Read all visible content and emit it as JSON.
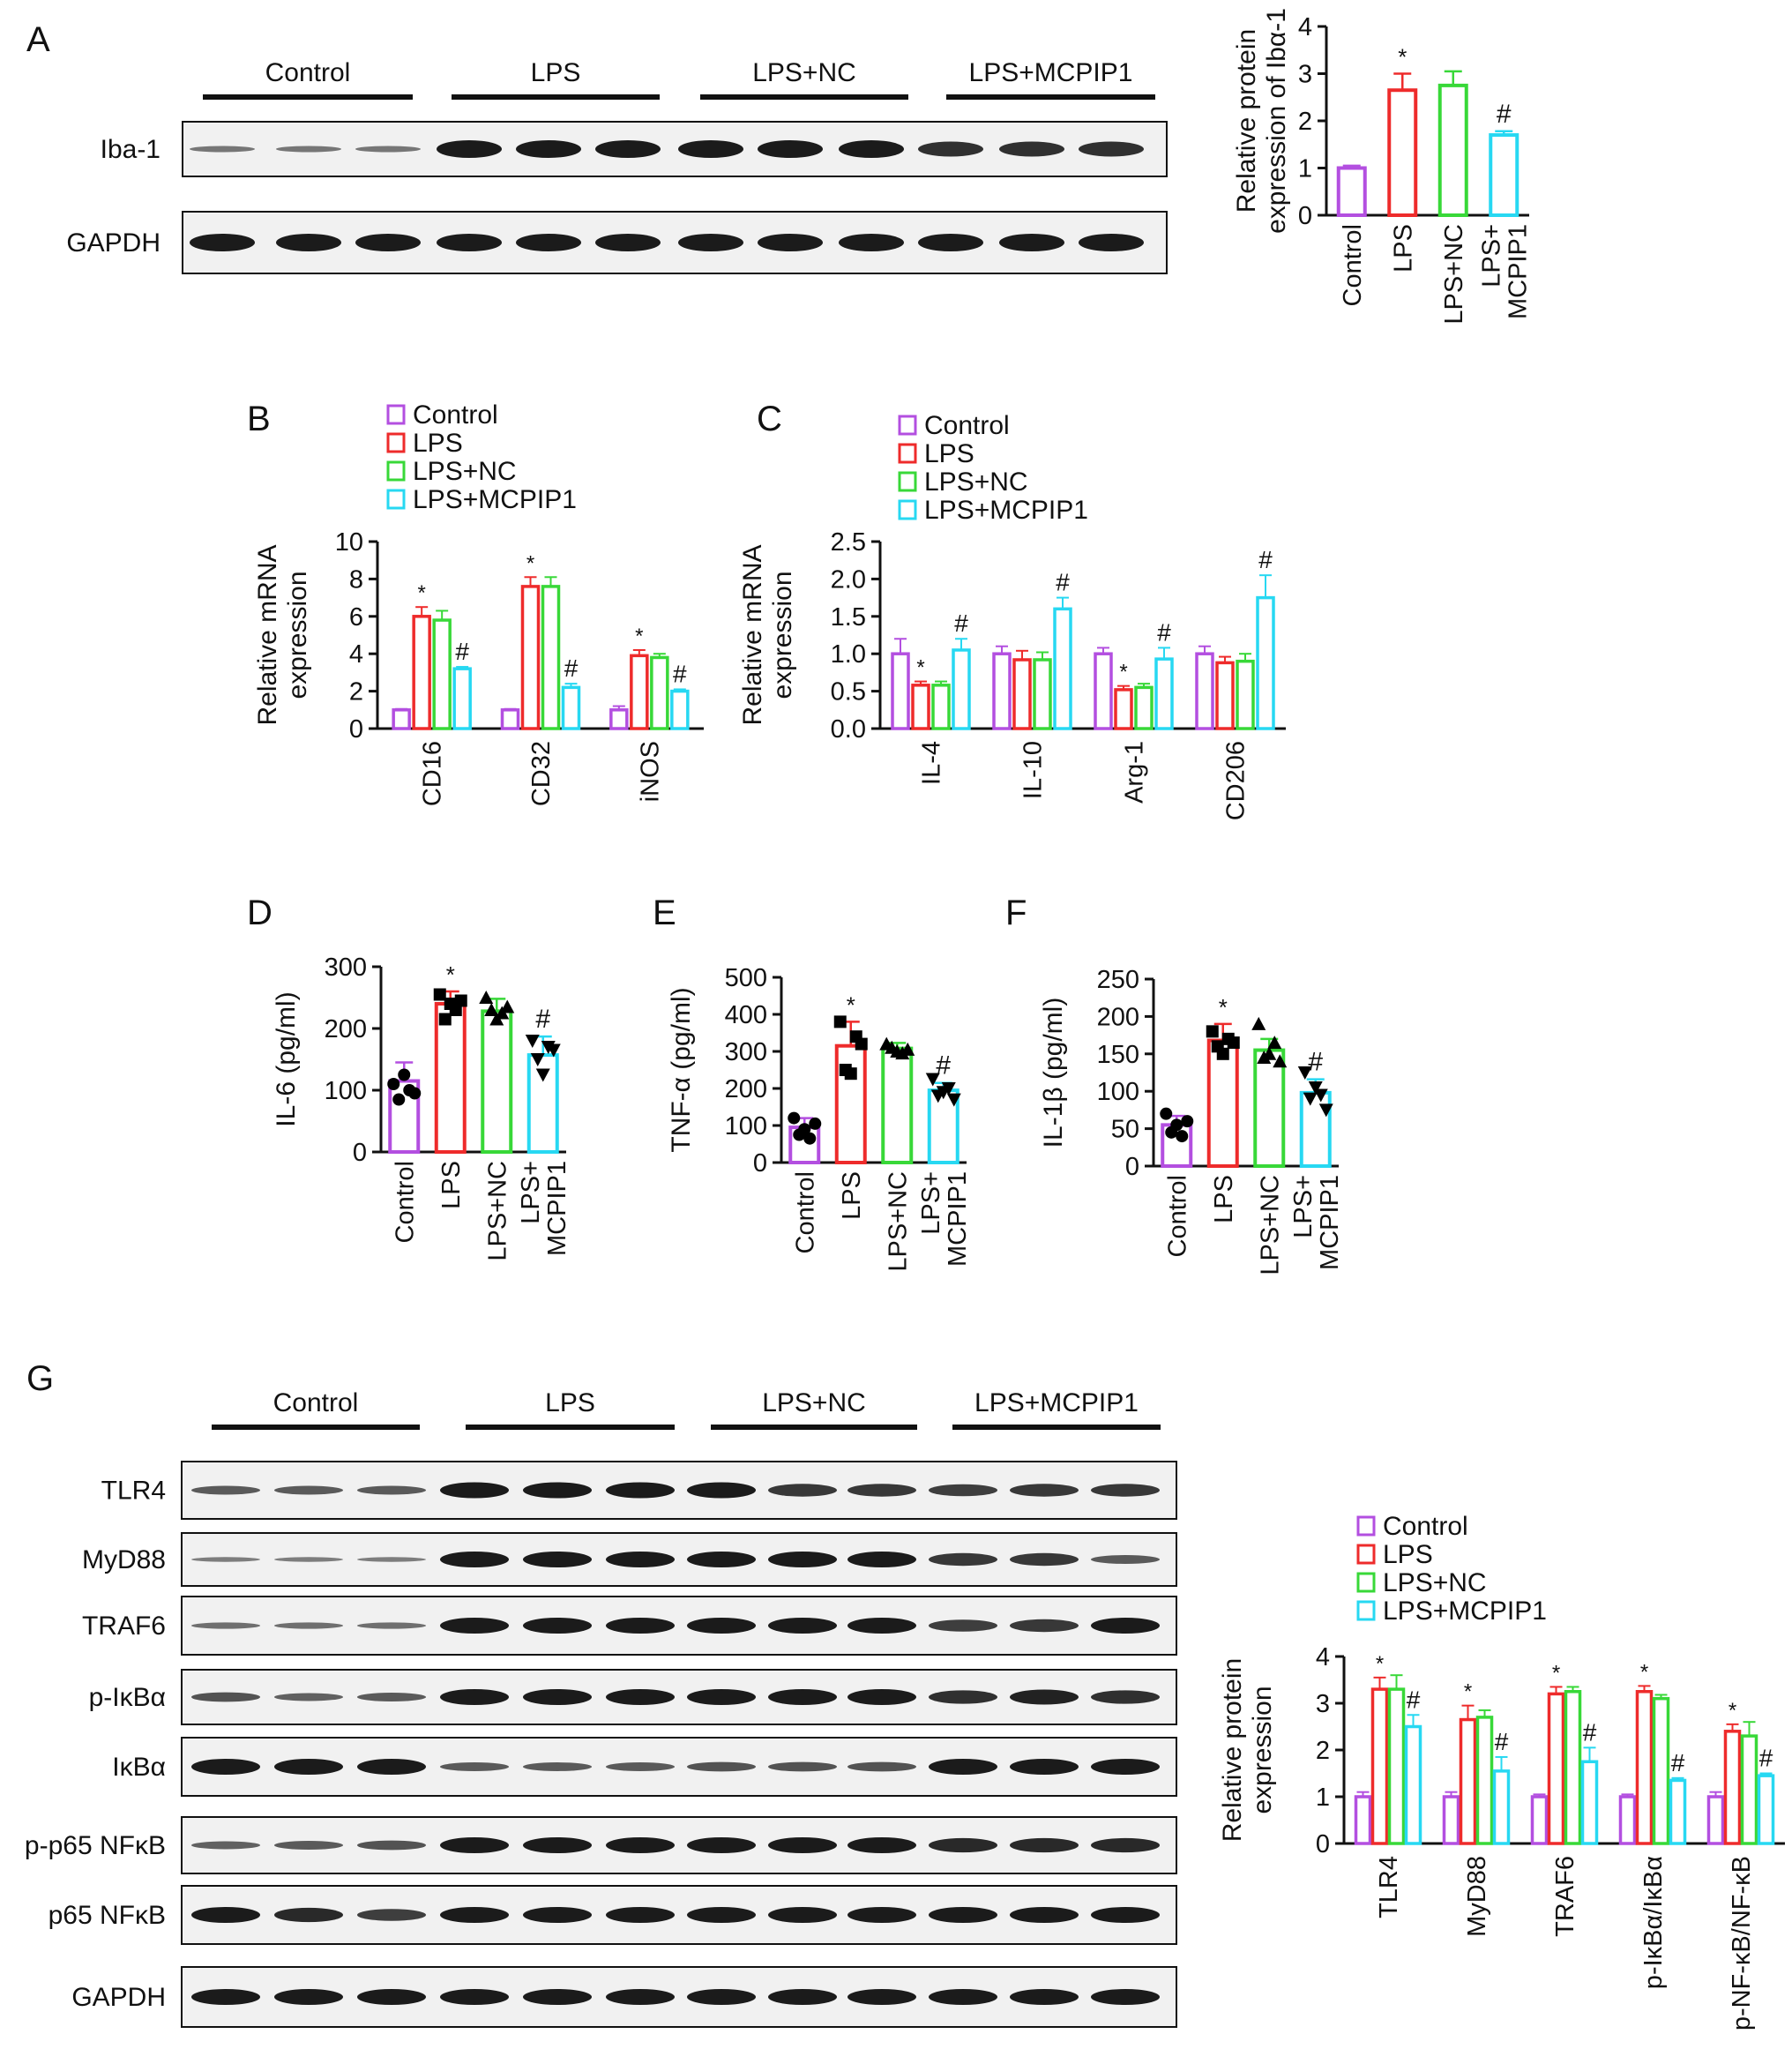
{
  "colors": {
    "Control": "#b34fe0",
    "LPS": "#ee2b2b",
    "LPS+NC": "#38d838",
    "LPS+MCPIP1": "#27d8f2",
    "band": "#1b1b1b"
  },
  "groups": [
    "Control",
    "LPS",
    "LPS+NC",
    "LPS+MCPIP1"
  ],
  "panel_letters": {
    "A": "A",
    "B": "B",
    "C": "C",
    "D": "D",
    "E": "E",
    "F": "F",
    "G": "G"
  },
  "blotA": {
    "rows": [
      "Iba-1",
      "GAPDH"
    ],
    "headers": [
      "Control",
      "LPS",
      "LPS+NC",
      "LPS+MCPIP1"
    ]
  },
  "blotG": {
    "rows": [
      "TLR4",
      "MyD88",
      "TRAF6",
      "p-IκBα",
      "IκBα",
      "p-p65 NFκB",
      "p65 NFκB",
      "GAPDH"
    ],
    "headers": [
      "Control",
      "LPS",
      "LPS+NC",
      "LPS+MCPIP1"
    ]
  },
  "chart_data": [
    {
      "id": "A",
      "type": "bar",
      "categories": [
        "Control",
        "LPS",
        "LPS+NC",
        "LPS+\nMCPIP1"
      ],
      "values": [
        1.0,
        2.65,
        2.75,
        1.7
      ],
      "errors": [
        0.05,
        0.35,
        0.3,
        0.08
      ],
      "marks": [
        "",
        "*",
        "",
        "#"
      ],
      "ylabel": [
        "Relative protein",
        "expression of Ibα-1"
      ],
      "ylim": [
        0,
        4
      ],
      "ticks": [
        0,
        1,
        2,
        3,
        4
      ]
    },
    {
      "id": "B",
      "type": "bar",
      "categories": [
        "CD16",
        "CD32",
        "iNOS"
      ],
      "series": [
        {
          "name": "Control",
          "values": [
            1.0,
            1.0,
            1.0
          ],
          "errors": [
            0.05,
            0.05,
            0.2
          ]
        },
        {
          "name": "LPS",
          "values": [
            6.0,
            7.6,
            3.9
          ],
          "errors": [
            0.5,
            0.5,
            0.3
          ]
        },
        {
          "name": "LPS+NC",
          "values": [
            5.8,
            7.6,
            3.8
          ],
          "errors": [
            0.5,
            0.5,
            0.2
          ]
        },
        {
          "name": "LPS+MCPIP1",
          "values": [
            3.2,
            2.2,
            2.0
          ],
          "errors": [
            0.1,
            0.2,
            0.1
          ]
        }
      ],
      "marks": [
        [
          "",
          "*",
          "",
          "#"
        ],
        [
          "",
          "*",
          "",
          "#"
        ],
        [
          "",
          "*",
          "",
          "#"
        ]
      ],
      "ylabel": [
        "Relative mRNA",
        "expression"
      ],
      "ylim": [
        0,
        10
      ],
      "ticks": [
        0,
        2,
        4,
        6,
        8,
        10
      ],
      "legend": "top"
    },
    {
      "id": "C",
      "type": "bar",
      "categories": [
        "IL-4",
        "IL-10",
        "Arg-1",
        "CD206"
      ],
      "series": [
        {
          "name": "Control",
          "values": [
            1.0,
            1.0,
            1.0,
            1.0
          ],
          "errors": [
            0.2,
            0.1,
            0.08,
            0.1
          ]
        },
        {
          "name": "LPS",
          "values": [
            0.58,
            0.92,
            0.52,
            0.88
          ],
          "errors": [
            0.05,
            0.12,
            0.05,
            0.08
          ]
        },
        {
          "name": "LPS+NC",
          "values": [
            0.58,
            0.92,
            0.55,
            0.9
          ],
          "errors": [
            0.05,
            0.1,
            0.05,
            0.1
          ]
        },
        {
          "name": "LPS+MCPIP1",
          "values": [
            1.05,
            1.6,
            0.93,
            1.75
          ],
          "errors": [
            0.15,
            0.15,
            0.15,
            0.3
          ]
        }
      ],
      "marks": [
        [
          "",
          "*",
          "",
          "#"
        ],
        [
          "",
          "",
          "",
          "#"
        ],
        [
          "",
          "*",
          "",
          "#"
        ],
        [
          "",
          "",
          "",
          "#"
        ]
      ],
      "ylabel": [
        "Relative mRNA",
        "expression"
      ],
      "ylim": [
        0,
        2.5
      ],
      "ticks": [
        "0.0",
        "0.5",
        "1.0",
        "1.5",
        "2.0",
        "2.5"
      ],
      "legend": "top"
    },
    {
      "id": "D",
      "type": "bar",
      "categories": [
        "Control",
        "LPS",
        "LPS+NC",
        "LPS+\nMCPIP1"
      ],
      "values": [
        115,
        240,
        228,
        157
      ],
      "errors": [
        30,
        20,
        20,
        30
      ],
      "points": [
        [
          110,
          85,
          125,
          100,
          95
        ],
        [
          255,
          215,
          240,
          230,
          245
        ],
        [
          250,
          230,
          215,
          225,
          235
        ],
        [
          180,
          150,
          125,
          170,
          165
        ]
      ],
      "marks": [
        "",
        "*",
        "",
        "#"
      ],
      "ylabel": [
        "IL-6 (pg/ml)"
      ],
      "ylim": [
        0,
        300
      ],
      "ticks": [
        0,
        100,
        200,
        300
      ]
    },
    {
      "id": "E",
      "type": "bar",
      "categories": [
        "Control",
        "LPS",
        "LPS+NC",
        "LPS+\nMCPIP1"
      ],
      "values": [
        95,
        315,
        308,
        195
      ],
      "errors": [
        25,
        65,
        15,
        20
      ],
      "points": [
        [
          120,
          75,
          90,
          65,
          105
        ],
        [
          380,
          250,
          240,
          340,
          320
        ],
        [
          320,
          310,
          300,
          295,
          305
        ],
        [
          225,
          180,
          190,
          200,
          170
        ]
      ],
      "marks": [
        "",
        "*",
        "",
        "#"
      ],
      "ylabel": [
        "TNF-α (pg/ml)"
      ],
      "ylim": [
        0,
        500
      ],
      "ticks": [
        0,
        100,
        200,
        300,
        400,
        500
      ],
      "points_dy": [
        8
      ]
    },
    {
      "id": "F",
      "type": "bar",
      "categories": [
        "Control",
        "LPS",
        "LPS+NC",
        "LPS+\nMCPIP1"
      ],
      "values": [
        55,
        168,
        155,
        98
      ],
      "errors": [
        12,
        22,
        15,
        18
      ],
      "points": [
        [
          70,
          45,
          55,
          40,
          60
        ],
        [
          180,
          160,
          150,
          170,
          165
        ],
        [
          190,
          145,
          150,
          165,
          140
        ],
        [
          125,
          90,
          105,
          95,
          75
        ]
      ],
      "marks": [
        "",
        "*",
        "",
        "#"
      ],
      "ylabel": [
        "IL-1β (pg/ml)"
      ],
      "ylim": [
        0,
        250
      ],
      "ticks": [
        0,
        50,
        100,
        150,
        200,
        250
      ]
    },
    {
      "id": "G",
      "type": "bar",
      "categories": [
        "TLR4",
        "MyD88",
        "TRAF6",
        "p-IκBα/IκBα",
        "p-NF-κB/NF-κB"
      ],
      "series": [
        {
          "name": "Control",
          "values": [
            1.0,
            1.0,
            1.0,
            1.0,
            1.0
          ],
          "errors": [
            0.1,
            0.1,
            0.05,
            0.05,
            0.1
          ]
        },
        {
          "name": "LPS",
          "values": [
            3.3,
            2.65,
            3.2,
            3.25,
            2.4
          ],
          "errors": [
            0.25,
            0.3,
            0.15,
            0.12,
            0.15
          ]
        },
        {
          "name": "LPS+NC",
          "values": [
            3.3,
            2.7,
            3.25,
            3.1,
            2.3
          ],
          "errors": [
            0.3,
            0.15,
            0.1,
            0.08,
            0.3
          ]
        },
        {
          "name": "LPS+MCPIP1",
          "values": [
            2.5,
            1.55,
            1.75,
            1.35,
            1.45
          ],
          "errors": [
            0.25,
            0.3,
            0.3,
            0.05,
            0.05
          ]
        }
      ],
      "marks": [
        [
          "",
          "*",
          "",
          "#"
        ],
        [
          "",
          "*",
          "",
          "#"
        ],
        [
          "",
          "*",
          "",
          "#"
        ],
        [
          "",
          "*",
          "",
          "#"
        ],
        [
          "",
          "*",
          "",
          "#"
        ]
      ],
      "ylabel": [
        "Relative protein",
        "expression"
      ],
      "ylim": [
        0,
        4
      ],
      "ticks": [
        0,
        1,
        2,
        3,
        4
      ],
      "legend": "top"
    }
  ]
}
